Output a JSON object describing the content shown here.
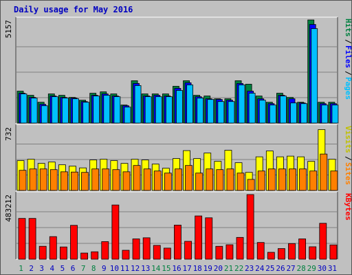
{
  "title": "Daily usage for May 2016",
  "colors": {
    "hits": "#008040",
    "hits_front": "#00a060",
    "files": "#0000ff",
    "files_front": "#3060ff",
    "pages": "#00c0ff",
    "pages_front": "#30d8ff",
    "visits": "#ffff00",
    "sites": "#ff8000",
    "kbytes": "#ff0000",
    "weekend_day": "#008040",
    "weekday": "#0000c0"
  },
  "chart_data": [
    {
      "type": "bar",
      "name": "usage-top",
      "max_label": "5157",
      "ylim": [
        0,
        5157
      ],
      "legend_order": [
        "Pages",
        "Files",
        "Hits"
      ],
      "categories": [
        "1",
        "2",
        "3",
        "4",
        "5",
        "6",
        "7",
        "8",
        "9",
        "10",
        "11",
        "12",
        "13",
        "14",
        "15",
        "16",
        "17",
        "18",
        "19",
        "20",
        "21",
        "22",
        "23",
        "24",
        "25",
        "26",
        "27",
        "28",
        "29",
        "30",
        "31"
      ],
      "series": [
        {
          "name": "Hits",
          "values": [
            1597,
            1389,
            1042,
            1458,
            1389,
            1284,
            1145,
            1493,
            1562,
            1458,
            903,
            2118,
            1458,
            1458,
            1458,
            1840,
            2118,
            1389,
            1354,
            1215,
            1215,
            2118,
            1944,
            1354,
            1042,
            1493,
            1284,
            1042,
            5157,
            1042,
            1042
          ]
        },
        {
          "name": "Files",
          "values": [
            1493,
            1284,
            938,
            1354,
            1284,
            1250,
            1076,
            1389,
            1458,
            1354,
            868,
            1979,
            1354,
            1389,
            1354,
            1736,
            2014,
            1319,
            1215,
            1180,
            1145,
            1979,
            1597,
            1215,
            972,
            1389,
            1215,
            1007,
            4931,
            972,
            972
          ]
        },
        {
          "name": "Pages",
          "values": [
            1458,
            1250,
            868,
            1319,
            1250,
            1215,
            1042,
            1354,
            1389,
            1319,
            799,
            1875,
            1319,
            1319,
            1319,
            1632,
            1910,
            1250,
            1180,
            1076,
            1076,
            1910,
            1493,
            1145,
            903,
            1354,
            1007,
            972,
            4722,
            903,
            903
          ]
        }
      ]
    },
    {
      "type": "bar",
      "name": "usage-middle",
      "max_label": "732",
      "ylim": [
        0,
        732
      ],
      "legend_order": [
        "Sites",
        "Visits"
      ],
      "categories": [
        "1",
        "2",
        "3",
        "4",
        "5",
        "6",
        "7",
        "8",
        "9",
        "10",
        "11",
        "12",
        "13",
        "14",
        "15",
        "16",
        "17",
        "18",
        "19",
        "20",
        "21",
        "22",
        "23",
        "24",
        "25",
        "26",
        "27",
        "28",
        "29",
        "30",
        "31"
      ],
      "series": [
        {
          "name": "Visits",
          "values": [
            345,
            361,
            313,
            329,
            297,
            281,
            261,
            353,
            361,
            345,
            313,
            361,
            353,
            305,
            257,
            369,
            461,
            369,
            433,
            337,
            465,
            321,
            209,
            389,
            457,
            389,
            397,
            389,
            337,
            704,
            361
          ]
        },
        {
          "name": "Sites",
          "values": [
            233,
            249,
            249,
            241,
            216,
            213,
            209,
            249,
            249,
            241,
            216,
            289,
            249,
            225,
            201,
            249,
            289,
            201,
            249,
            241,
            249,
            201,
            128,
            225,
            249,
            249,
            249,
            249,
            225,
            421,
            225
          ]
        }
      ]
    },
    {
      "type": "bar",
      "name": "usage-bottom",
      "max_label": "483212",
      "ylim": [
        0,
        483212
      ],
      "legend_order": [
        "KBytes"
      ],
      "categories": [
        "1",
        "2",
        "3",
        "4",
        "5",
        "6",
        "7",
        "8",
        "9",
        "10",
        "11",
        "12",
        "13",
        "14",
        "15",
        "16",
        "17",
        "18",
        "19",
        "20",
        "21",
        "22",
        "23",
        "24",
        "25",
        "26",
        "27",
        "28",
        "29",
        "30",
        "31"
      ],
      "series": [
        {
          "name": "KBytes",
          "values": [
            304920,
            304920,
            96636,
            168840,
            91556,
            253056,
            45980,
            55400,
            131348,
            405372,
            66688,
            151908,
            160112,
            103140,
            82920,
            255044,
            133576,
            323472,
            309524,
            96384,
            107900,
            162916,
            483212,
            125052,
            51408,
            79452,
            116852,
            151908,
            92856,
            268428,
            106792
          ]
        }
      ]
    }
  ],
  "x_axis_labels": [
    "1",
    "2",
    "3",
    "4",
    "5",
    "6",
    "7",
    "8",
    "9",
    "10",
    "11",
    "12",
    "13",
    "14",
    "15",
    "16",
    "17",
    "18",
    "19",
    "20",
    "21",
    "22",
    "23",
    "24",
    "25",
    "26",
    "27",
    "28",
    "29",
    "30",
    "31"
  ],
  "weekend_days": [
    "1",
    "7",
    "8",
    "14",
    "15",
    "21",
    "22",
    "28",
    "29"
  ]
}
